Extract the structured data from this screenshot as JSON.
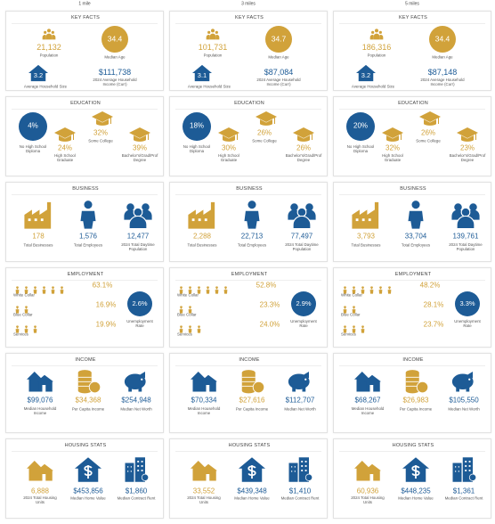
{
  "section_titles": {
    "key_facts": "KEY FACTS",
    "education": "EDUCATION",
    "business": "BUSINESS",
    "employment": "EMPLOYMENT",
    "income": "INCOME",
    "housing": "HOUSING STATS"
  },
  "labels": {
    "population": "Population",
    "median_age": "Median Age",
    "household_size": "Average Household Size",
    "household_income": "2024 Average Household Income (Curr)",
    "no_high_school": "No High School Diploma",
    "high_school": "High School Graduate",
    "some_college": "Some College",
    "bachelors": "Bachelor's/Grad/Prof Degree",
    "businesses": "Total Businesses",
    "employees": "Total Employees",
    "daytime_population": "2024 Total Daytime Population",
    "white_collar": "White Collar",
    "blue_collar": "Blue Collar",
    "services": "Services",
    "unemployment": "Unemployment Rate",
    "household": "Median Household Income",
    "per_capita": "Per Capita Income",
    "net_worth": "Median Net Worth",
    "units": "2024 Total Housing Units",
    "home_value": "Median Home Value",
    "rent": "Median Contract Rent"
  },
  "columns": [
    {
      "header": "1 mile",
      "key_facts": {
        "population": "21,132",
        "median_age": "34.4",
        "household_size": "3.2",
        "household_income": "$111,738"
      },
      "education": {
        "no_high_school": "4%",
        "high_school": "24%",
        "some_college": "32%",
        "bachelors": "39%"
      },
      "business": {
        "businesses": "178",
        "employees": "1,576",
        "daytime_population": "12,477"
      },
      "employment": {
        "white_collar": "63.1%",
        "blue_collar": "16.9%",
        "services": "19.9%",
        "unemployment": "2.6%"
      },
      "income": {
        "household": "$99,076",
        "per_capita": "$34,368",
        "net_worth": "$254,948"
      },
      "housing": {
        "units": "6,888",
        "home_value": "$453,856",
        "rent": "$1,860"
      }
    },
    {
      "header": "3 miles",
      "key_facts": {
        "population": "101,731",
        "median_age": "34.7",
        "household_size": "3.1",
        "household_income": "$87,084"
      },
      "education": {
        "no_high_school": "18%",
        "high_school": "30%",
        "some_college": "26%",
        "bachelors": "26%"
      },
      "business": {
        "businesses": "2,288",
        "employees": "22,713",
        "daytime_population": "77,497"
      },
      "employment": {
        "white_collar": "52.8%",
        "blue_collar": "23.3%",
        "services": "24.0%",
        "unemployment": "2.9%"
      },
      "income": {
        "household": "$70,334",
        "per_capita": "$27,616",
        "net_worth": "$112,707"
      },
      "housing": {
        "units": "33,552",
        "home_value": "$439,348",
        "rent": "$1,410"
      }
    },
    {
      "header": "5 miles",
      "key_facts": {
        "population": "186,316",
        "median_age": "34.4",
        "household_size": "3.2",
        "household_income": "$87,148"
      },
      "education": {
        "no_high_school": "20%",
        "high_school": "32%",
        "some_college": "26%",
        "bachelors": "23%"
      },
      "business": {
        "businesses": "3,793",
        "employees": "33,704",
        "daytime_population": "139,761"
      },
      "employment": {
        "white_collar": "48.2%",
        "blue_collar": "28.1%",
        "services": "23.7%",
        "unemployment": "3.3%"
      },
      "income": {
        "household": "$68,267",
        "per_capita": "$26,983",
        "net_worth": "$105,550"
      },
      "housing": {
        "units": "60,936",
        "home_value": "$448,235",
        "rent": "$1,361"
      }
    }
  ]
}
